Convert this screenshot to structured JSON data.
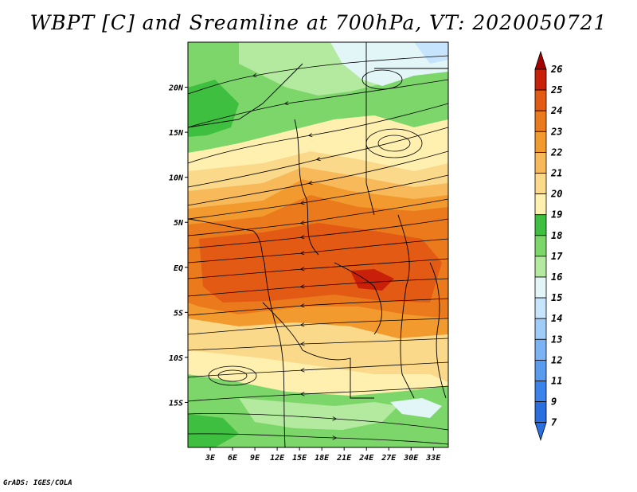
{
  "title": "WBPT [C] and Sreamline at 700hPa, VT: 2020050721",
  "footer": "GrADS: IGES/COLA",
  "colors": {
    "c7_9": "#2a6fe0",
    "c9_11": "#3b83ea",
    "c11_12": "#5a9bf0",
    "c12_13": "#7bb3f5",
    "c13_14": "#a0ccf8",
    "c14_15": "#c6e4fb",
    "c15_16": "#e3f6f7",
    "c16_17": "#b4ea9f",
    "c17_18": "#7cd66a",
    "c18_19": "#3fbf3f",
    "c19_20": "#fff0b0",
    "c20_21": "#fbd98a",
    "c21_22": "#f7b95a",
    "c22_23": "#f29a2e",
    "c23_24": "#ea7a1c",
    "c24_25": "#e35a14",
    "c25_26": "#c9200a",
    "c26": "#a40000",
    "streamline": "#000000",
    "border": "#000000"
  },
  "map": {
    "lon_range": [
      0,
      35
    ],
    "lat_range": [
      -20,
      25
    ],
    "lon_ticks": [
      "3E",
      "6E",
      "9E",
      "12E",
      "15E",
      "18E",
      "21E",
      "24E",
      "27E",
      "30E",
      "33E"
    ],
    "lat_ticks": [
      "20N",
      "15N",
      "10N",
      "5N",
      "EQ",
      "5S",
      "10S",
      "15S"
    ]
  },
  "colorbar": {
    "labels": [
      "26",
      "25",
      "24",
      "23",
      "22",
      "21",
      "20",
      "19",
      "18",
      "17",
      "16",
      "15",
      "14",
      "13",
      "12",
      "11",
      "9",
      "7"
    ]
  }
}
